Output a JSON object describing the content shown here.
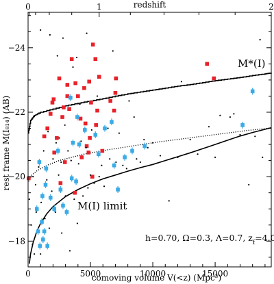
{
  "chart_data": {
    "type": "scatter",
    "title": "",
    "xlabel_bottom": "comoving volume V(<z) (Mpc³)",
    "xlabel_top": "redshift",
    "ylabel": "rest frame M(I₈₁₄) (AB)",
    "xlim": [
      0,
      19500
    ],
    "ylim": [
      -17.2,
      -25.1
    ],
    "y_inverted": true,
    "grid": false,
    "bottom_ticks": [
      0,
      5000,
      10000,
      15000
    ],
    "top_ticks": [
      {
        "z": 0,
        "V": 0
      },
      {
        "z": 1,
        "V": 5700
      },
      {
        "z": 2,
        "V": 19500
      }
    ],
    "y_ticks": [
      -18,
      -20,
      -22,
      -24
    ],
    "annotations": {
      "mstar_label": "M*(I)",
      "limit_label": "M(I) limit",
      "cosmology": "h=0.70, Ω=0.3, Λ=0.7, z",
      "cosmology_sub": "f",
      "cosmology_tail": "=4.0"
    },
    "series": [
      {
        "marker": "filled-square",
        "color": "#e8222a",
        "points": [
          [
            50,
            -19.95
          ],
          [
            1300,
            -21.25
          ],
          [
            1550,
            -21.5
          ],
          [
            1800,
            -21.95
          ],
          [
            1950,
            -22.3
          ],
          [
            2050,
            -22.4
          ],
          [
            2100,
            -20.75
          ],
          [
            2300,
            -21.2
          ],
          [
            2500,
            -23.05
          ],
          [
            2600,
            -19.8
          ],
          [
            2750,
            -21.85
          ],
          [
            2850,
            -22.15
          ],
          [
            2950,
            -20.45
          ],
          [
            3150,
            -22.5
          ],
          [
            3150,
            -22.85
          ],
          [
            3300,
            -22.1
          ],
          [
            3500,
            -23.65
          ],
          [
            3750,
            -19.5
          ],
          [
            3800,
            -22.9
          ],
          [
            4000,
            -22.5
          ],
          [
            4200,
            -21.8
          ],
          [
            4300,
            -20.6
          ],
          [
            4500,
            -22.75
          ],
          [
            4600,
            -21.65
          ],
          [
            4700,
            -20.95
          ],
          [
            4850,
            -20.75
          ],
          [
            4900,
            -22.95
          ],
          [
            4950,
            -21.2
          ],
          [
            5050,
            -22.3
          ],
          [
            5150,
            -20.0
          ],
          [
            5200,
            -24.1
          ],
          [
            5400,
            -23.65
          ],
          [
            5450,
            -21.6
          ],
          [
            5550,
            -22.05
          ],
          [
            5700,
            -23.1
          ],
          [
            5950,
            -20.8
          ],
          [
            6600,
            -22.35
          ],
          [
            6900,
            -22.05
          ],
          [
            7000,
            -22.6
          ],
          [
            7050,
            -23.05
          ],
          [
            14350,
            -23.5
          ],
          [
            14900,
            -23.05
          ]
        ]
      },
      {
        "marker": "filled-square-errorbar",
        "color": "#3aabe6",
        "points": [
          [
            700,
            -19.0
          ],
          [
            800,
            -18.3
          ],
          [
            900,
            -20.45
          ],
          [
            950,
            -17.85
          ],
          [
            1100,
            -18.6
          ],
          [
            1150,
            -19.4
          ],
          [
            1200,
            -18.05
          ],
          [
            1300,
            -18.3
          ],
          [
            1400,
            -19.75
          ],
          [
            1450,
            -20.25
          ],
          [
            1550,
            -17.85
          ],
          [
            1800,
            -19.35
          ],
          [
            2100,
            -19.0
          ],
          [
            2400,
            -20.8
          ],
          [
            2600,
            -19.6
          ],
          [
            2800,
            -19.1
          ],
          [
            3100,
            -18.9
          ],
          [
            3400,
            -22.45
          ],
          [
            3500,
            -19.95
          ],
          [
            3600,
            -21.05
          ],
          [
            3850,
            -19.85
          ],
          [
            3950,
            -21.85
          ],
          [
            4100,
            -21.0
          ],
          [
            4550,
            -21.45
          ],
          [
            5400,
            -21.3
          ],
          [
            5650,
            -20.7
          ],
          [
            6150,
            -21.5
          ],
          [
            6700,
            -21.7
          ],
          [
            6900,
            -20.35
          ],
          [
            7200,
            -19.6
          ],
          [
            7750,
            -20.6
          ],
          [
            8350,
            -20.8
          ],
          [
            9350,
            -20.95
          ],
          [
            17200,
            -21.6
          ],
          [
            18000,
            -22.65
          ]
        ]
      },
      {
        "marker": "dot",
        "color": "#000000",
        "points": [
          [
            100,
            -19.3
          ],
          [
            250,
            -18.5
          ],
          [
            350,
            -17.9
          ],
          [
            400,
            -20.0
          ],
          [
            500,
            -17.6
          ],
          [
            600,
            -19.75
          ],
          [
            650,
            -18.9
          ],
          [
            850,
            -20.3
          ],
          [
            1000,
            -17.6
          ],
          [
            1000,
            -24.55
          ],
          [
            1050,
            -19.2
          ],
          [
            1250,
            -20.8
          ],
          [
            1350,
            -18.7
          ],
          [
            1500,
            -19.9
          ],
          [
            1600,
            -21.4
          ],
          [
            1700,
            -18.4
          ],
          [
            1750,
            -24.4
          ],
          [
            1900,
            -19.55
          ],
          [
            2000,
            -20.55
          ],
          [
            2200,
            -18.9
          ],
          [
            2250,
            -21.05
          ],
          [
            2350,
            -23.75
          ],
          [
            2450,
            -20.05
          ],
          [
            2500,
            -21.2
          ],
          [
            2650,
            -20.45
          ],
          [
            2700,
            -18.25
          ],
          [
            2800,
            -24.3
          ],
          [
            2950,
            -21.6
          ],
          [
            3000,
            -19.4
          ],
          [
            3200,
            -20.8
          ],
          [
            3350,
            -17.7
          ],
          [
            3450,
            -20.5
          ],
          [
            3600,
            -23.4
          ],
          [
            3700,
            -19.3
          ],
          [
            3900,
            -23.7
          ],
          [
            3950,
            -18.55
          ],
          [
            4050,
            -20.4
          ],
          [
            4150,
            -22.25
          ],
          [
            4250,
            -21.1
          ],
          [
            4400,
            -19.4
          ],
          [
            4650,
            -20.9
          ],
          [
            4700,
            -24.45
          ],
          [
            4800,
            -19.65
          ],
          [
            5000,
            -20.05
          ],
          [
            5100,
            -21.45
          ],
          [
            5300,
            -19.8
          ],
          [
            5550,
            -22.5
          ],
          [
            5700,
            -20.0
          ],
          [
            5900,
            -20.35
          ],
          [
            6100,
            -19.7
          ],
          [
            6400,
            -21.5
          ],
          [
            6550,
            -20.55
          ],
          [
            6800,
            -23.9
          ],
          [
            7050,
            -20.45
          ],
          [
            7300,
            -21.35
          ],
          [
            7600,
            -20.35
          ],
          [
            7900,
            -20.25
          ],
          [
            8100,
            -22.35
          ],
          [
            8500,
            -21.85
          ],
          [
            8700,
            -20.55
          ],
          [
            9000,
            -20.45
          ],
          [
            9300,
            -21.15
          ],
          [
            9600,
            -20.9
          ],
          [
            10000,
            -21.05
          ],
          [
            10600,
            -20.65
          ],
          [
            11300,
            -19.25
          ],
          [
            12000,
            -20.6
          ],
          [
            12300,
            -22.95
          ],
          [
            13000,
            -21.15
          ],
          [
            13600,
            -20.7
          ],
          [
            14500,
            -21.55
          ],
          [
            15000,
            -20.6
          ],
          [
            15400,
            -21.9
          ],
          [
            16200,
            -21.85
          ],
          [
            16500,
            -21.95
          ],
          [
            17000,
            -21.3
          ],
          [
            17700,
            -19.75
          ],
          [
            18200,
            -21.25
          ],
          [
            18600,
            -24.25
          ],
          [
            18800,
            -20.6
          ]
        ]
      }
    ],
    "curves": [
      {
        "name": "M*(I)",
        "style": "solid-stepped",
        "color": "#000000",
        "x": [
          0,
          200,
          500,
          1000,
          2000,
          3000,
          4000,
          5000,
          6000,
          7000,
          8000,
          9000,
          10000,
          11000,
          12000,
          13000,
          14000,
          15000,
          16000,
          17000,
          18000,
          19000,
          19500
        ],
        "y": [
          -21.35,
          -21.75,
          -21.9,
          -22.0,
          -22.1,
          -22.2,
          -22.28,
          -22.35,
          -22.42,
          -22.5,
          -22.57,
          -22.63,
          -22.69,
          -22.75,
          -22.81,
          -22.86,
          -22.92,
          -22.98,
          -23.03,
          -23.08,
          -23.14,
          -23.19,
          -23.22
        ]
      },
      {
        "name": "dotted-envelope",
        "style": "dotted",
        "color": "#000000",
        "x": [
          50,
          300,
          700,
          1500,
          2500,
          3500,
          4500,
          5500,
          6500,
          7500,
          8500,
          9500,
          10500,
          11500,
          12500,
          13500,
          14500,
          15500,
          16500,
          17500,
          18500,
          19500
        ],
        "y": [
          -19.85,
          -20.05,
          -20.18,
          -20.35,
          -20.5,
          -20.6,
          -20.7,
          -20.77,
          -20.84,
          -20.9,
          -20.96,
          -21.02,
          -21.08,
          -21.13,
          -21.18,
          -21.23,
          -21.28,
          -21.33,
          -21.38,
          -21.43,
          -21.47,
          -21.51
        ]
      },
      {
        "name": "M(I) limit",
        "style": "solid",
        "color": "#000000",
        "x": [
          100,
          200,
          400,
          700,
          1000,
          1500,
          2000,
          3000,
          4000,
          5000,
          6000,
          7000,
          8000,
          9000,
          10000,
          11000,
          12000,
          13000,
          14000,
          15000,
          16000,
          17000,
          18000,
          19500
        ],
        "y": [
          -17.3,
          -17.6,
          -17.95,
          -18.3,
          -18.55,
          -18.85,
          -19.07,
          -19.38,
          -19.6,
          -19.78,
          -19.93,
          -20.05,
          -20.17,
          -20.28,
          -20.38,
          -20.5,
          -20.62,
          -20.74,
          -20.87,
          -21.0,
          -21.13,
          -21.26,
          -21.37,
          -21.52
        ]
      }
    ]
  }
}
